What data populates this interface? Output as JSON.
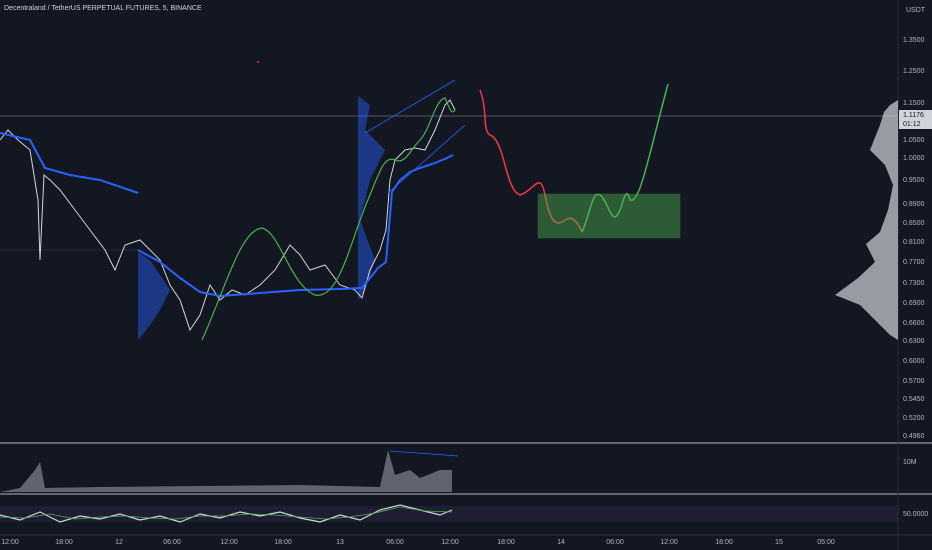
{
  "header": {
    "symbol": "Decentraland / TetherUS PERPETUAL FUTURES, 5, BINANCE"
  },
  "price_axis": {
    "currency": "USDT",
    "labels": [
      "1.3500",
      "1.2500",
      "1.1500",
      "1.0500",
      "1.0000",
      "0.9500",
      "0.8900",
      "0.8500",
      "0.8100",
      "0.7700",
      "0.7300",
      "0.6900",
      "0.6600",
      "0.6300",
      "0.6000",
      "0.5700",
      "0.5450",
      "0.5200",
      "0.4960"
    ],
    "current_price": "1.1176",
    "countdown": "01:12"
  },
  "volume_pane": {
    "label": "10M"
  },
  "oscillator_pane": {
    "label": "50.0000"
  },
  "time_axis": {
    "labels": [
      "12:00",
      "18:00",
      "12",
      "06:00",
      "12:00",
      "18:00",
      "13",
      "06:00",
      "12:00",
      "18:00",
      "14",
      "06:00",
      "12:00",
      "18:00",
      "15",
      "05:00"
    ]
  }
}
